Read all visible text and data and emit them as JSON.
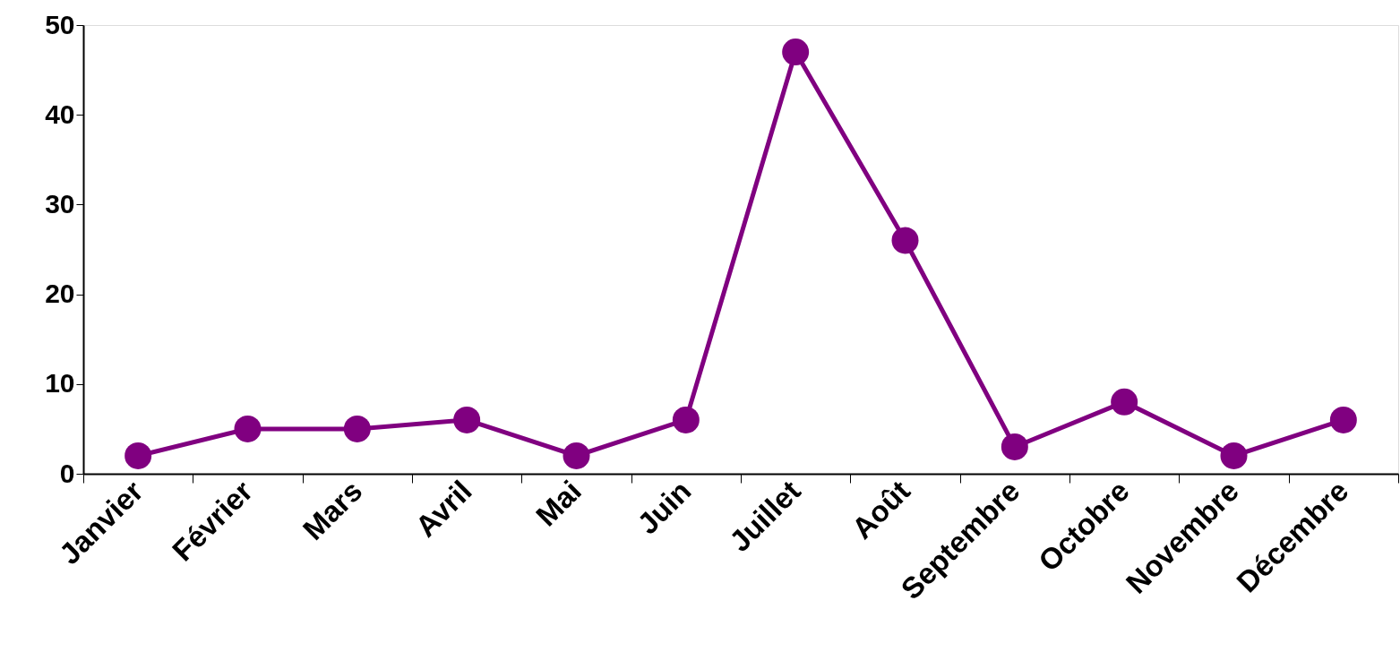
{
  "chart_data": {
    "type": "line",
    "categories": [
      "Janvier",
      "Février",
      "Mars",
      "Avril",
      "Mai",
      "Juin",
      "Juillet",
      "Août",
      "Septembre",
      "Octobre",
      "Novembre",
      "Décembre"
    ],
    "series": [
      {
        "color": "#800080",
        "values": [
          2,
          5,
          5,
          6,
          2,
          6,
          47,
          26,
          3,
          8,
          2,
          6
        ]
      }
    ],
    "ylim": [
      0,
      50
    ],
    "yticks": [
      0,
      10,
      20,
      30,
      40,
      50
    ],
    "grid": false,
    "legend": false,
    "marker": "circle",
    "line_style": "solid"
  }
}
